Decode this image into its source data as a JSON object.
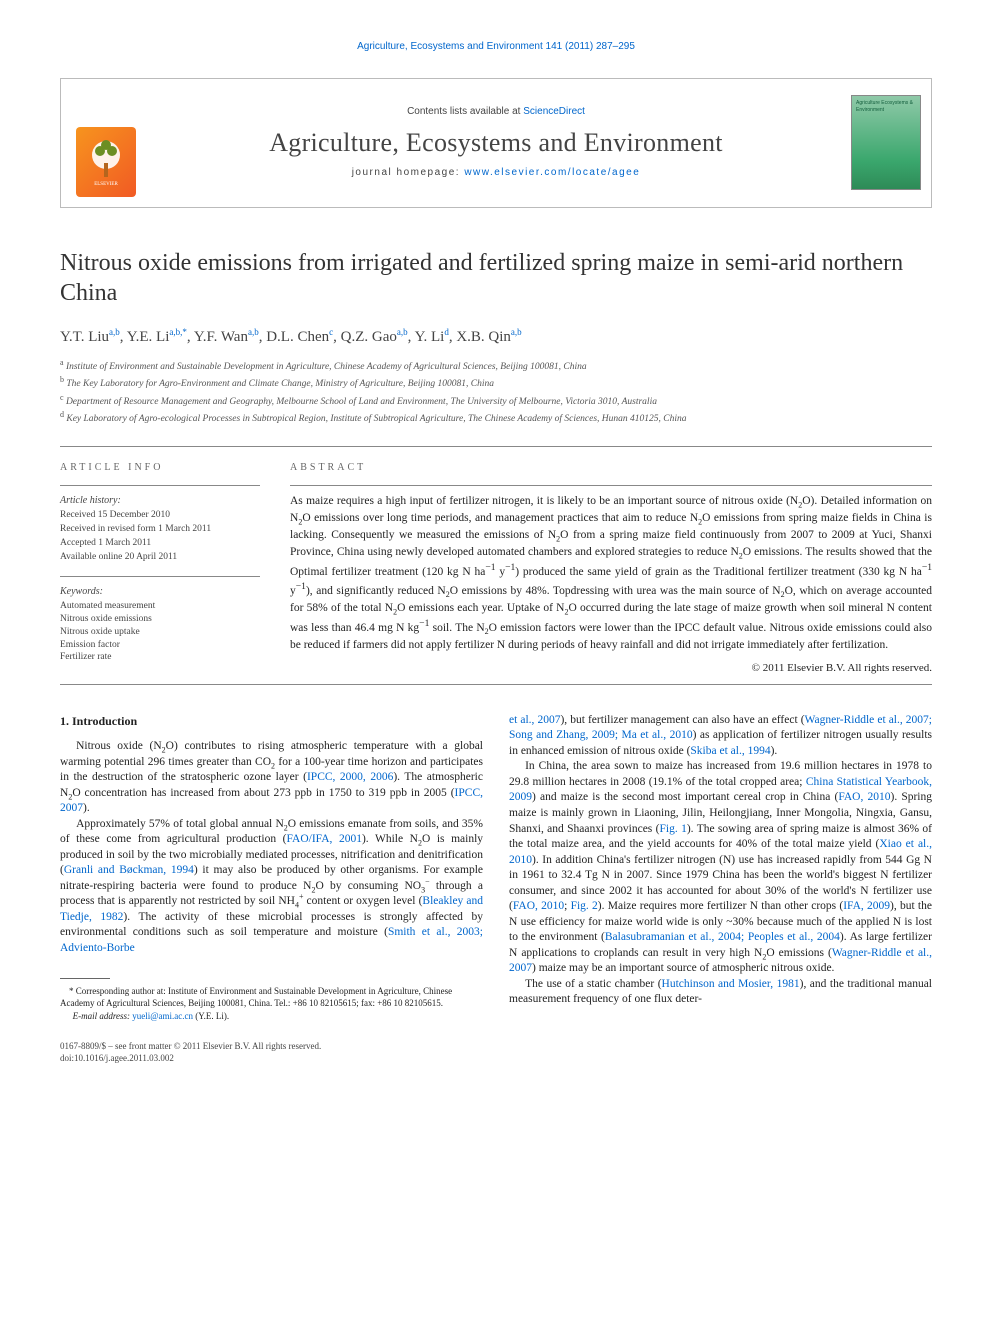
{
  "running_header": "Agriculture, Ecosystems and Environment 141 (2011) 287–295",
  "contents_box": {
    "contents_line_prefix": "Contents lists available at ",
    "contents_link": "ScienceDirect",
    "journal_title": "Agriculture, Ecosystems and Environment",
    "homepage_prefix": "journal homepage: ",
    "homepage_url": "www.elsevier.com/locate/agee",
    "cover_text": "Agriculture Ecosystems & Environment"
  },
  "article_title": "Nitrous oxide emissions from irrigated and fertilized spring maize in semi-arid northern China",
  "authors_html": "Y.T. Liu<sup>a,b</sup>, Y.E. Li<sup>a,b,*</sup>, Y.F. Wan<sup>a,b</sup>, D.L. Chen<sup>c</sup>, Q.Z. Gao<sup>a,b</sup>, Y. Li<sup>d</sup>, X.B. Qin<sup>a,b</sup>",
  "affiliations": [
    {
      "sup": "a",
      "text": "Institute of Environment and Sustainable Development in Agriculture, Chinese Academy of Agricultural Sciences, Beijing 100081, China"
    },
    {
      "sup": "b",
      "text": "The Key Laboratory for Agro-Environment and Climate Change, Ministry of Agriculture, Beijing 100081, China"
    },
    {
      "sup": "c",
      "text": "Department of Resource Management and Geography, Melbourne School of Land and Environment, The University of Melbourne, Victoria 3010, Australia"
    },
    {
      "sup": "d",
      "text": "Key Laboratory of Agro-ecological Processes in Subtropical Region, Institute of Subtropical Agriculture, The Chinese Academy of Sciences, Hunan 410125, China"
    }
  ],
  "article_info_head": "ARTICLE INFO",
  "abstract_head": "ABSTRACT",
  "history_label": "Article history:",
  "history": [
    "Received 15 December 2010",
    "Received in revised form 1 March 2011",
    "Accepted 1 March 2011",
    "Available online 20 April 2011"
  ],
  "keywords_label": "Keywords:",
  "keywords": [
    "Automated measurement",
    "Nitrous oxide emissions",
    "Nitrous oxide uptake",
    "Emission factor",
    "Fertilizer rate"
  ],
  "abstract": "As maize requires a high input of fertilizer nitrogen, it is likely to be an important source of nitrous oxide (N2O). Detailed information on N2O emissions over long time periods, and management practices that aim to reduce N2O emissions from spring maize fields in China is lacking. Consequently we measured the emissions of N2O from a spring maize field continuously from 2007 to 2009 at Yuci, Shanxi Province, China using newly developed automated chambers and explored strategies to reduce N2O emissions. The results showed that the Optimal fertilizer treatment (120 kg N ha−1 y−1) produced the same yield of grain as the Traditional fertilizer treatment (330 kg N ha−1 y−1), and significantly reduced N2O emissions by 48%. Topdressing with urea was the main source of N2O, which on average accounted for 58% of the total N2O emissions each year. Uptake of N2O occurred during the late stage of maize growth when soil mineral N content was less than 46.4 mg N kg−1 soil. The N2O emission factors were lower than the IPCC default value. Nitrous oxide emissions could also be reduced if farmers did not apply fertilizer N during periods of heavy rainfall and did not irrigate immediately after fertilization.",
  "abstract_copyright": "© 2011 Elsevier B.V. All rights reserved.",
  "section1_head": "1.  Introduction",
  "col1_paras": [
    "Nitrous oxide (N<sub>2</sub>O) contributes to rising atmospheric temperature with a global warming potential 296 times greater than CO<sub>2</sub> for a 100-year time horizon and participates in the destruction of the stratospheric ozone layer (<a>IPCC, 2000, 2006</a>). The atmospheric N<sub>2</sub>O concentration has increased from about 273 ppb in 1750 to 319 ppb in 2005 (<a>IPCC, 2007</a>).",
    "Approximately 57% of total global annual N<sub>2</sub>O emissions emanate from soils, and 35% of these come from agricultural production (<a>FAO/IFA, 2001</a>). While N<sub>2</sub>O is mainly produced in soil by the two microbially mediated processes, nitrification and denitrification (<a>Granli and Bøckman, 1994</a>) it may also be produced by other organisms. For example nitrate-respiring bacteria were found to produce N<sub>2</sub>O by consuming NO<sub>3</sub><sup>−</sup> through a process that is apparently not restricted by soil NH<sub>4</sub><sup>+</sup> content or oxygen level (<a>Bleakley and Tiedje, 1982</a>). The activity of these microbial processes is strongly affected by environmental conditions such as soil temperature and moisture (<a>Smith et al., 2003; Adviento-Borbe</a>"
  ],
  "footnote_corr": "* Corresponding author at: Institute of Environment and Sustainable Development in Agriculture, Chinese Academy of Agricultural Sciences, Beijing 100081, China. Tel.: +86 10 82105615; fax: +86 10 82105615.",
  "footnote_email_label": "E-mail address:",
  "footnote_email": "yueli@ami.ac.cn",
  "footnote_email_suffix": "(Y.E. Li).",
  "col2_paras": [
    "<a>et al., 2007</a>), but fertilizer management can also have an effect (<a>Wagner-Riddle et al., 2007; Song and Zhang, 2009; Ma et al., 2010</a>) as application of fertilizer nitrogen usually results in enhanced emission of nitrous oxide (<a>Skiba et al., 1994</a>).",
    "In China, the area sown to maize has increased from 19.6 million hectares in 1978 to 29.8 million hectares in 2008 (19.1% of the total cropped area; <a>China Statistical Yearbook, 2009</a>) and maize is the second most important cereal crop in China (<a>FAO, 2010</a>). Spring maize is mainly grown in Liaoning, Jilin, Heilongjiang, Inner Mongolia, Ningxia, Gansu, Shanxi, and Shaanxi provinces (<a>Fig. 1</a>). The sowing area of spring maize is almost 36% of the total maize area, and the yield accounts for 40% of the total maize yield (<a>Xiao et al., 2010</a>). In addition China's fertilizer nitrogen (N) use has increased rapidly from 544 Gg N in 1961 to 32.4 Tg N in 2007. Since 1979 China has been the world's biggest N fertilizer consumer, and since 2002 it has accounted for about 30% of the world's N fertilizer use (<a>FAO, 2010</a>; <a>Fig. 2</a>). Maize requires more fertilizer N than other crops (<a>IFA, 2009</a>), but the N use efficiency for maize world wide is only ~30% because much of the applied N is lost to the environment (<a>Balasubramanian et al., 2004; Peoples et al., 2004</a>). As large fertilizer N applications to croplands can result in very high N<sub>2</sub>O emissions (<a>Wagner-Riddle et al., 2007</a>) maize may be an important source of atmospheric nitrous oxide.",
    "The use of a static chamber (<a>Hutchinson and Mosier, 1981</a>), and the traditional manual measurement frequency of one flux deter-"
  ],
  "footer_left": "0167-8809/$ – see front matter © 2011 Elsevier B.V. All rights reserved.",
  "doi": "doi:10.1016/j.agee.2011.03.002",
  "colors": {
    "link": "#0066cc",
    "text": "#222222",
    "border": "#bbbbbb",
    "logo_gradient_start": "#f7941e",
    "logo_gradient_end": "#f15a24",
    "cover_gradient_start": "#8fc9a8",
    "cover_gradient_end": "#2e8b57"
  }
}
